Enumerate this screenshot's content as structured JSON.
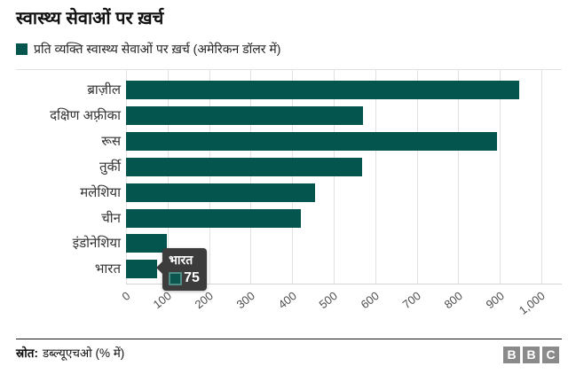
{
  "header": {
    "title": "स्वास्थ्य सेवाओं पर ख़र्च"
  },
  "legend": {
    "label": "प्रति व्यक्ति स्वास्थ्य सेवाओं पर ख़र्च (अमेरिकन डॉलर में)",
    "color": "#04554e"
  },
  "chart_data": {
    "type": "bar",
    "orientation": "horizontal",
    "title": "स्वास्थ्य सेवाओं पर ख़र्च",
    "series_label": "प्रति व्यक्ति स्वास्थ्य सेवाओं पर ख़र्च (अमेरिकन डॉलर में)",
    "categories": [
      "ब्राज़ील",
      "दक्षिण अफ़्रीका",
      "रूस",
      "तुर्की",
      "मलेशिया",
      "चीन",
      "इंडोनेशिया",
      "भारत"
    ],
    "values": [
      947,
      570,
      893,
      568,
      456,
      420,
      99,
      75
    ],
    "xlim": [
      0,
      1000
    ],
    "xticks": [
      0,
      100,
      200,
      300,
      400,
      500,
      600,
      700,
      800,
      900,
      1000
    ],
    "xtick_labels": [
      "0",
      "100",
      "200",
      "300",
      "400",
      "500",
      "600",
      "700",
      "800",
      "900",
      "1,000"
    ],
    "grid": true,
    "legend_position": "top-left",
    "bar_color": "#04554e",
    "tooltip": {
      "category": "भारत",
      "value": "75",
      "category_index": 7,
      "swatch_color": "#0b564f",
      "swatch_border": "#4e8c85",
      "background": "#3c3c3c"
    }
  },
  "footer": {
    "source_label": "स्रोत:",
    "source_text": "डब्ल्यूएचओ (% में)",
    "logo_letters": [
      "B",
      "B",
      "C"
    ]
  }
}
